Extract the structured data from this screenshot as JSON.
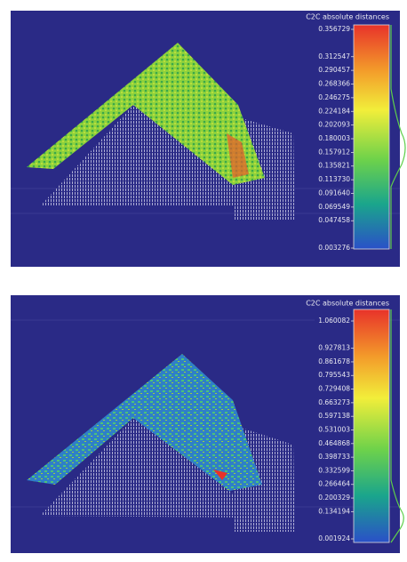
{
  "panels": [
    {
      "scale": {
        "title": "C2C absolute distances",
        "labels": [
          "0.356729",
          "0.312547",
          "0.290457",
          "0.268366",
          "0.246275",
          "0.224184",
          "0.202093",
          "0.180003",
          "0.157912",
          "0.135821",
          "0.113730",
          "0.091640",
          "0.069549",
          "0.047458",
          "0.003276"
        ]
      }
    },
    {
      "scale": {
        "title": "C2C absolute distances",
        "labels": [
          "1.060082",
          "0.927813",
          "0.861678",
          "0.795543",
          "0.729408",
          "0.663273",
          "0.597138",
          "0.531003",
          "0.464868",
          "0.398733",
          "0.332599",
          "0.266464",
          "0.200329",
          "0.134194",
          "0.001924"
        ]
      }
    }
  ]
}
